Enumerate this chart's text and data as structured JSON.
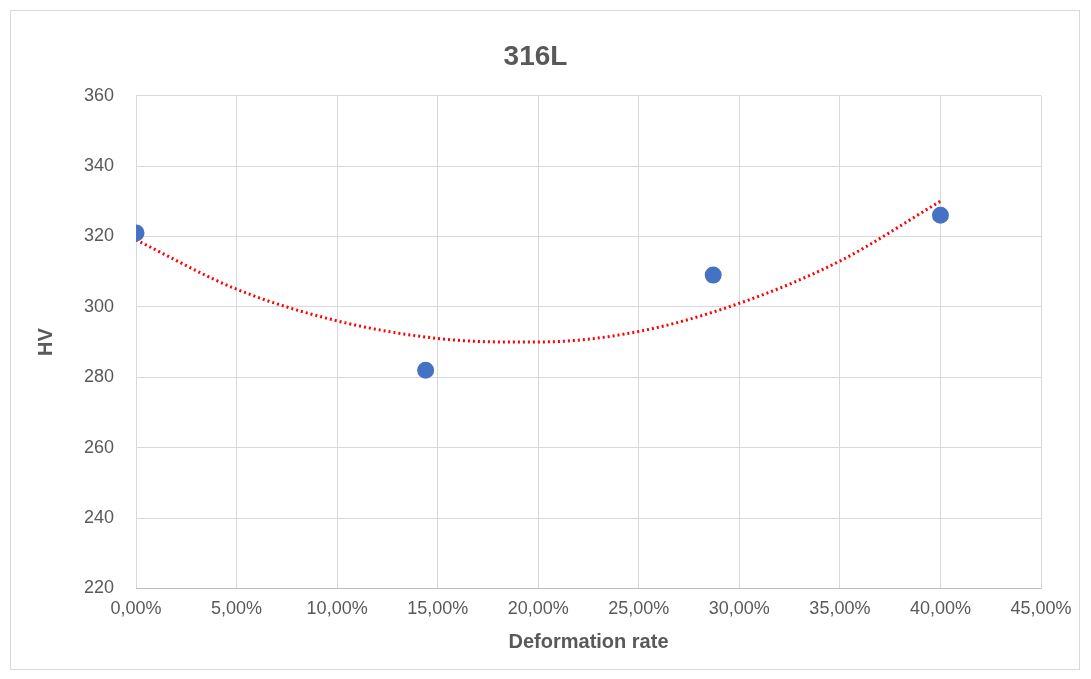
{
  "chart_data": {
    "type": "scatter",
    "title": "316L",
    "xlabel": "Deformation rate",
    "ylabel": "HV",
    "xlim": [
      0,
      45
    ],
    "xticks": [
      {
        "value": 0,
        "label": "0,00%"
      },
      {
        "value": 5,
        "label": "5,00%"
      },
      {
        "value": 10,
        "label": "10,00%"
      },
      {
        "value": 15,
        "label": "15,00%"
      },
      {
        "value": 20,
        "label": "20,00%"
      },
      {
        "value": 25,
        "label": "25,00%"
      },
      {
        "value": 30,
        "label": "30,00%"
      },
      {
        "value": 35,
        "label": "35,00%"
      },
      {
        "value": 40,
        "label": "40,00%"
      },
      {
        "value": 45,
        "label": "45,00%"
      }
    ],
    "ylim": [
      220,
      360
    ],
    "yticks": [
      220,
      240,
      260,
      280,
      300,
      320,
      340,
      360
    ],
    "grid": true,
    "marker": "circle",
    "series": [
      {
        "type": "scatter",
        "color": "#4472c4",
        "x": [
          0,
          14.4,
          28.7,
          40
        ],
        "values": [
          321,
          282,
          309,
          326
        ]
      },
      {
        "type": "line",
        "color": "#ff0000",
        "line_style": "dotted",
        "marker": "none",
        "x": [
          0,
          5,
          10,
          15,
          18.5,
          20,
          25,
          30,
          35,
          40
        ],
        "values": [
          319,
          305,
          296,
          291,
          290,
          290,
          293,
          301,
          313,
          330
        ]
      }
    ]
  }
}
